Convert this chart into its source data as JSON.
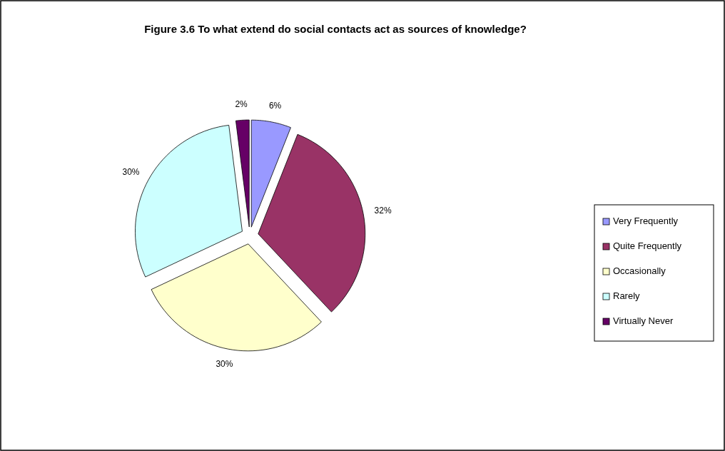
{
  "chart_data": {
    "type": "pie",
    "title": "Figure 3.6 To what extend do social contacts act as sources of knowledge?",
    "categories": [
      "Very Frequently",
      "Quite Frequently",
      "Occasionally",
      "Rarely",
      "Virtually Never"
    ],
    "values": [
      6,
      32,
      30,
      30,
      2
    ],
    "colors": [
      "#9999ff",
      "#993366",
      "#ffffcc",
      "#ccffff",
      "#660066"
    ],
    "value_labels": [
      "6%",
      "32%",
      "30%",
      "30%",
      "2%"
    ],
    "legend": "right"
  }
}
